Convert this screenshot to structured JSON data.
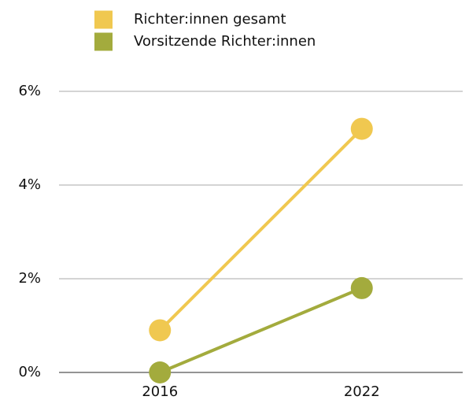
{
  "chart_data": {
    "type": "line",
    "categories": [
      "2016",
      "2022"
    ],
    "series": [
      {
        "name": "Richter:innen gesamt",
        "color": "#f0c850",
        "values": [
          0.9,
          5.2
        ]
      },
      {
        "name": "Vorsitzende Richter:innen",
        "color": "#a3ab3d",
        "values": [
          0,
          1.8
        ]
      }
    ],
    "ylim": [
      0,
      6
    ],
    "yticks": [
      {
        "value": 0,
        "label": "0%"
      },
      {
        "value": 2,
        "label": "2%"
      },
      {
        "value": 4,
        "label": "4%"
      },
      {
        "value": 6,
        "label": "6%"
      }
    ],
    "grid": true,
    "legend": "top"
  }
}
